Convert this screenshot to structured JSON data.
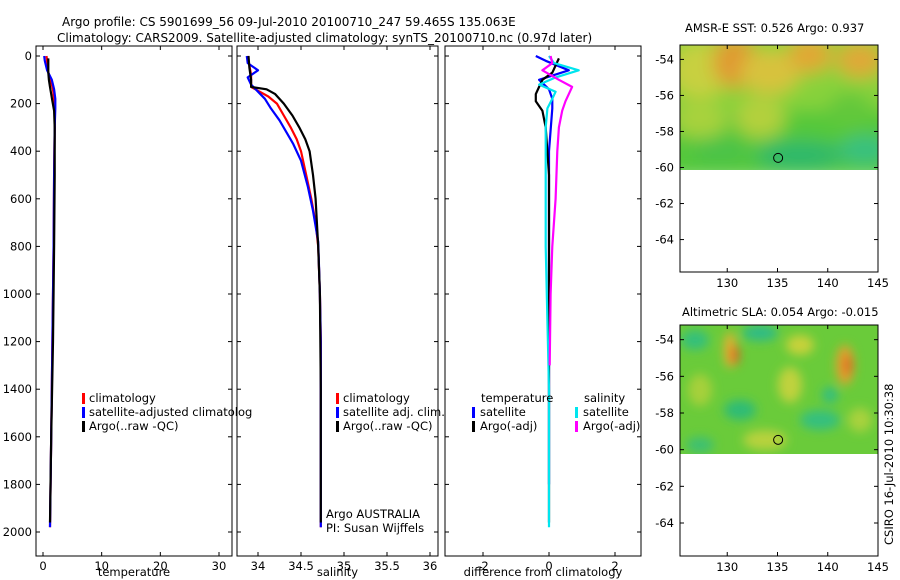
{
  "header": {
    "line1": "Argo profile: CS 5901699_56 09-Jul-2010 20100710_247 59.465S 135.063E",
    "line2": "Climatology: CARS2009. Satellite-adjusted climatology: synTS_20100710.nc (0.97d later)"
  },
  "side_text": "CSIRO 16-Jul-2010 10:30:38",
  "colors": {
    "red": "#ff0000",
    "blue": "#0000ff",
    "black": "#000000",
    "cyan": "#00e5ee",
    "magenta": "#ff00ff"
  },
  "chart_data": [
    {
      "type": "line",
      "title": "",
      "xlabel": "temperature",
      "ylabel": "",
      "xlim": [
        -1,
        32
      ],
      "ylim": [
        2050,
        -20
      ],
      "xticks": [
        0,
        10,
        20,
        30
      ],
      "xtick_labels": [
        "0",
        "10",
        "20",
        "30"
      ],
      "yticks": [
        0,
        200,
        400,
        600,
        800,
        1000,
        1200,
        1400,
        1600,
        1800,
        2000
      ],
      "ytick_labels": [
        "0",
        "200",
        "400",
        "600",
        "800",
        "1000",
        "1200",
        "1400",
        "1600",
        "1800",
        "2000"
      ],
      "legend": {
        "position": "lower-right",
        "entries": [
          {
            "label": "climatology",
            "color": "#ff0000"
          },
          {
            "label": "satellite-adjusted climatolog",
            "color": "#0000ff"
          },
          {
            "label": "Argo(..raw -QC)",
            "color": "#000000"
          }
        ]
      },
      "series": [
        {
          "name": "climatology",
          "color": "#ff0000",
          "x": [
            0.6,
            0.7,
            0.8,
            1.3,
            1.7,
            1.9,
            2.0,
            2.0,
            1.9,
            1.8,
            1.6,
            1.4,
            1.2
          ],
          "y": [
            0,
            20,
            60,
            100,
            140,
            180,
            220,
            300,
            500,
            800,
            1200,
            1600,
            1980
          ]
        },
        {
          "name": "satellite-adjusted climatology",
          "color": "#0000ff",
          "x": [
            0.2,
            0.3,
            0.7,
            1.5,
            1.9,
            2.1,
            2.1,
            2.0,
            1.9,
            1.8,
            1.6,
            1.4,
            1.2
          ],
          "y": [
            0,
            20,
            60,
            100,
            140,
            180,
            220,
            300,
            500,
            800,
            1200,
            1600,
            1980
          ]
        },
        {
          "name": "Argo(..raw -QC)",
          "color": "#000000",
          "x": [
            0.9,
            0.9,
            0.9,
            1.0,
            1.2,
            1.4,
            1.6,
            1.9,
            2.0,
            2.0,
            1.9,
            1.7,
            1.4,
            1.2
          ],
          "y": [
            10,
            40,
            70,
            100,
            130,
            160,
            190,
            230,
            300,
            500,
            800,
            1200,
            1600,
            1960
          ]
        }
      ]
    },
    {
      "type": "line",
      "title": "",
      "xlabel": "salinity",
      "ylabel": "",
      "xlim": [
        33.8,
        36.1
      ],
      "ylim": [
        2050,
        -20
      ],
      "xticks": [
        34,
        34.5,
        35,
        35.5,
        36
      ],
      "xtick_labels": [
        "34",
        "34.5",
        "35",
        "35.5",
        "36"
      ],
      "yticks": [],
      "ytick_labels": [],
      "legend": {
        "position": "lower-right",
        "entries": [
          {
            "label": "climatology",
            "color": "#ff0000"
          },
          {
            "label": "satellite adj. clim.",
            "color": "#0000ff"
          },
          {
            "label": "Argo(..raw -QC)",
            "color": "#000000"
          }
        ]
      },
      "annotation": [
        "Argo AUSTRALIA",
        "PI: Susan Wijffels"
      ],
      "series": [
        {
          "name": "climatology",
          "color": "#ff0000",
          "x": [
            33.88,
            33.9,
            33.92,
            33.92,
            34.02,
            34.12,
            34.22,
            34.3,
            34.38,
            34.45,
            34.5,
            34.56,
            34.62,
            34.67,
            34.7,
            34.72,
            34.73,
            34.73,
            34.73
          ],
          "y": [
            0,
            40,
            80,
            130,
            150,
            170,
            200,
            250,
            300,
            350,
            400,
            500,
            600,
            700,
            800,
            1000,
            1200,
            1600,
            1980
          ]
        },
        {
          "name": "satellite adj. clim.",
          "color": "#0000ff",
          "x": [
            33.87,
            33.88,
            34.0,
            33.88,
            33.92,
            34.0,
            34.08,
            34.15,
            34.25,
            34.33,
            34.41,
            34.5,
            34.58,
            34.64,
            34.7,
            34.72,
            34.73,
            34.73,
            34.73
          ],
          "y": [
            0,
            30,
            60,
            90,
            120,
            150,
            180,
            220,
            270,
            320,
            370,
            440,
            550,
            650,
            780,
            1000,
            1200,
            1600,
            1980
          ]
        },
        {
          "name": "Argo(..raw -QC)",
          "color": "#000000",
          "x": [
            33.89,
            33.9,
            33.92,
            33.92,
            34.1,
            34.2,
            34.3,
            34.4,
            34.48,
            34.55,
            34.6,
            34.64,
            34.67,
            34.7,
            34.72,
            34.73,
            34.73
          ],
          "y": [
            0,
            50,
            100,
            130,
            140,
            160,
            200,
            250,
            300,
            350,
            400,
            500,
            600,
            800,
            1000,
            1400,
            1960
          ]
        }
      ]
    },
    {
      "type": "line",
      "title": "",
      "xlabel": "difference from climatology",
      "ylabel": "",
      "xlim": [
        -3,
        3.1
      ],
      "ylim": [
        2050,
        -20
      ],
      "xticks": [
        -2,
        0,
        2
      ],
      "xtick_labels": [
        "-2",
        "0",
        "2"
      ],
      "yticks": [],
      "ytick_labels": [],
      "legend": {
        "position": "lower-center",
        "groups": [
          {
            "title": "temperature",
            "entries": [
              {
                "label": "satellite",
                "color": "#0000ff"
              },
              {
                "label": "Argo(-adj)",
                "color": "#000000"
              }
            ]
          },
          {
            "title": "salinity",
            "entries": [
              {
                "label": "satellite",
                "color": "#00e5ee"
              },
              {
                "label": "Argo(-adj)",
                "color": "#ff00ff"
              }
            ]
          }
        ]
      },
      "series": [
        {
          "name": "temperature satellite",
          "color": "#0000ff",
          "x": [
            -0.4,
            -0.1,
            0.6,
            -0.3,
            0.0,
            0.1,
            0.1,
            0.0,
            0.0,
            0.0
          ],
          "y": [
            0,
            20,
            60,
            100,
            140,
            180,
            220,
            400,
            800,
            1800
          ]
        },
        {
          "name": "temperature Argo(-adj)",
          "color": "#000000",
          "x": [
            0.3,
            0.2,
            0.1,
            -0.2,
            -0.3,
            -0.4,
            -0.4,
            -0.2,
            -0.1,
            0.0,
            0.0,
            0.0
          ],
          "y": [
            10,
            40,
            70,
            100,
            130,
            160,
            190,
            230,
            300,
            500,
            1000,
            1960
          ]
        },
        {
          "name": "salinity satellite",
          "color": "#00e5ee",
          "x": [
            0.0,
            0.15,
            0.9,
            0.2,
            -0.3,
            0.2,
            0.1,
            -0.05,
            -0.1,
            -0.1,
            -0.1,
            0.0,
            0.0
          ],
          "y": [
            0,
            30,
            60,
            90,
            120,
            150,
            180,
            220,
            300,
            500,
            800,
            1400,
            1980
          ]
        },
        {
          "name": "salinity Argo(-adj)",
          "color": "#ff00ff",
          "x": [
            0.05,
            0.1,
            -0.2,
            0.3,
            0.7,
            0.6,
            0.5,
            0.4,
            0.3,
            0.25,
            0.2,
            0.1,
            0.05,
            0.02
          ],
          "y": [
            0,
            30,
            60,
            100,
            130,
            160,
            190,
            230,
            300,
            400,
            600,
            800,
            1000,
            1300
          ]
        }
      ]
    },
    {
      "type": "heatmap",
      "title": "AMSR-E SST: 0.526 Argo: 0.937",
      "xlabel": "",
      "ylabel": "",
      "xlim": [
        125.3,
        145
      ],
      "ylim": [
        -65.8,
        -53.2
      ],
      "xticks": [
        130,
        135,
        140,
        145
      ],
      "xtick_labels": [
        "130",
        "135",
        "140",
        "145"
      ],
      "yticks": [
        -54,
        -56,
        -58,
        -60,
        -62,
        -64
      ],
      "ytick_labels": [
        "-54",
        "-56",
        "-58",
        "-60",
        "-62",
        "-64"
      ],
      "data_extent": {
        "lon": [
          125.3,
          145
        ],
        "lat": [
          -60,
          -53.2
        ]
      },
      "marker": {
        "lon": 135.063,
        "lat": -59.465
      }
    },
    {
      "type": "heatmap",
      "title": "Altimetric SLA: 0.054 Argo: -0.015",
      "xlabel": "",
      "ylabel": "",
      "xlim": [
        125.3,
        145
      ],
      "ylim": [
        -65.8,
        -53.2
      ],
      "xticks": [
        130,
        135,
        140,
        145
      ],
      "xtick_labels": [
        "130",
        "135",
        "140",
        "145"
      ],
      "yticks": [
        -54,
        -56,
        -58,
        -60,
        -62,
        -64
      ],
      "ytick_labels": [
        "-54",
        "-56",
        "-58",
        "-60",
        "-62",
        "-64"
      ],
      "data_extent": {
        "lon": [
          125.3,
          145
        ],
        "lat": [
          -60,
          -53.2
        ]
      },
      "marker": {
        "lon": 135.063,
        "lat": -59.465
      }
    }
  ]
}
